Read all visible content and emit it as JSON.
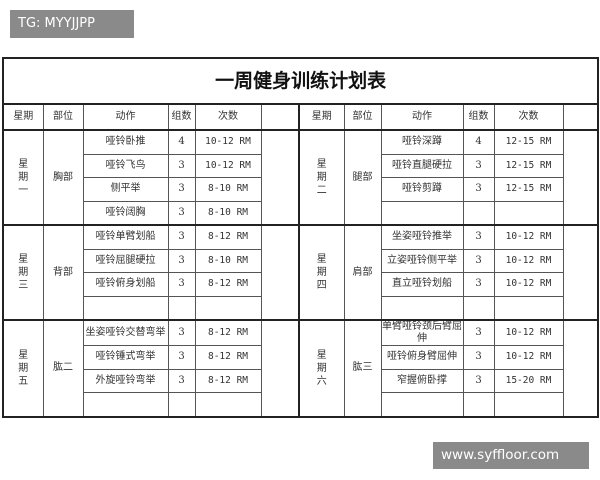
{
  "watermark_top": "TG: MYYJJPP",
  "watermark_bottom": "www.syffloor.com",
  "table": {
    "title": "一周健身训练计划表",
    "headers": [
      "星期",
      "部位",
      "动作",
      "组数",
      "次数"
    ],
    "blocks": [
      {
        "left": {
          "day": "星期一",
          "part": "胸部",
          "rows": [
            {
              "exercise": "哑铃卧推",
              "sets": "4",
              "reps": "10-12 RM"
            },
            {
              "exercise": "哑铃飞鸟",
              "sets": "3",
              "reps": "10-12 RM"
            },
            {
              "exercise": "侧平举",
              "sets": "3",
              "reps": "8-10 RM"
            },
            {
              "exercise": "哑铃阔胸",
              "sets": "3",
              "reps": "8-10 RM"
            }
          ]
        },
        "right": {
          "day": "星期二",
          "part": "腿部",
          "rows": [
            {
              "exercise": "哑铃深蹲",
              "sets": "4",
              "reps": "12-15 RM"
            },
            {
              "exercise": "哑铃直腿硬拉",
              "sets": "3",
              "reps": "12-15 RM"
            },
            {
              "exercise": "哑铃剪蹲",
              "sets": "3",
              "reps": "12-15 RM"
            },
            {
              "exercise": "",
              "sets": "",
              "reps": ""
            }
          ]
        }
      },
      {
        "left": {
          "day": "星期三",
          "part": "背部",
          "rows": [
            {
              "exercise": "哑铃单臂划船",
              "sets": "3",
              "reps": "8-12 RM"
            },
            {
              "exercise": "哑铃屈腿硬拉",
              "sets": "3",
              "reps": "8-10 RM"
            },
            {
              "exercise": "哑铃俯身划船",
              "sets": "3",
              "reps": "8-12 RM"
            },
            {
              "exercise": "",
              "sets": "",
              "reps": ""
            }
          ]
        },
        "right": {
          "day": "星期四",
          "part": "肩部",
          "rows": [
            {
              "exercise": "坐姿哑铃推举",
              "sets": "3",
              "reps": "10-12 RM"
            },
            {
              "exercise": "立姿哑铃侧平举",
              "sets": "3",
              "reps": "10-12 RM"
            },
            {
              "exercise": "直立哑铃划船",
              "sets": "3",
              "reps": "10-12 RM"
            },
            {
              "exercise": "",
              "sets": "",
              "reps": ""
            }
          ]
        }
      },
      {
        "left": {
          "day": "星期五",
          "part": "肱二",
          "rows": [
            {
              "exercise": "坐姿哑铃交替弯举",
              "sets": "3",
              "reps": "8-12 RM"
            },
            {
              "exercise": "哑铃锤式弯举",
              "sets": "3",
              "reps": "8-12 RM"
            },
            {
              "exercise": "外旋哑铃弯举",
              "sets": "3",
              "reps": "8-12 RM"
            },
            {
              "exercise": "",
              "sets": "",
              "reps": ""
            }
          ]
        },
        "right": {
          "day": "星期六",
          "part": "肱三",
          "rows": [
            {
              "exercise": "单臂哑铃颈后臂屈伸",
              "sets": "3",
              "reps": "10-12 RM"
            },
            {
              "exercise": "哑铃俯身臂屈伸",
              "sets": "3",
              "reps": "10-12 RM"
            },
            {
              "exercise": "窄握俯卧撑",
              "sets": "3",
              "reps": "15-20 RM"
            },
            {
              "exercise": "",
              "sets": "",
              "reps": ""
            }
          ]
        }
      }
    ]
  }
}
